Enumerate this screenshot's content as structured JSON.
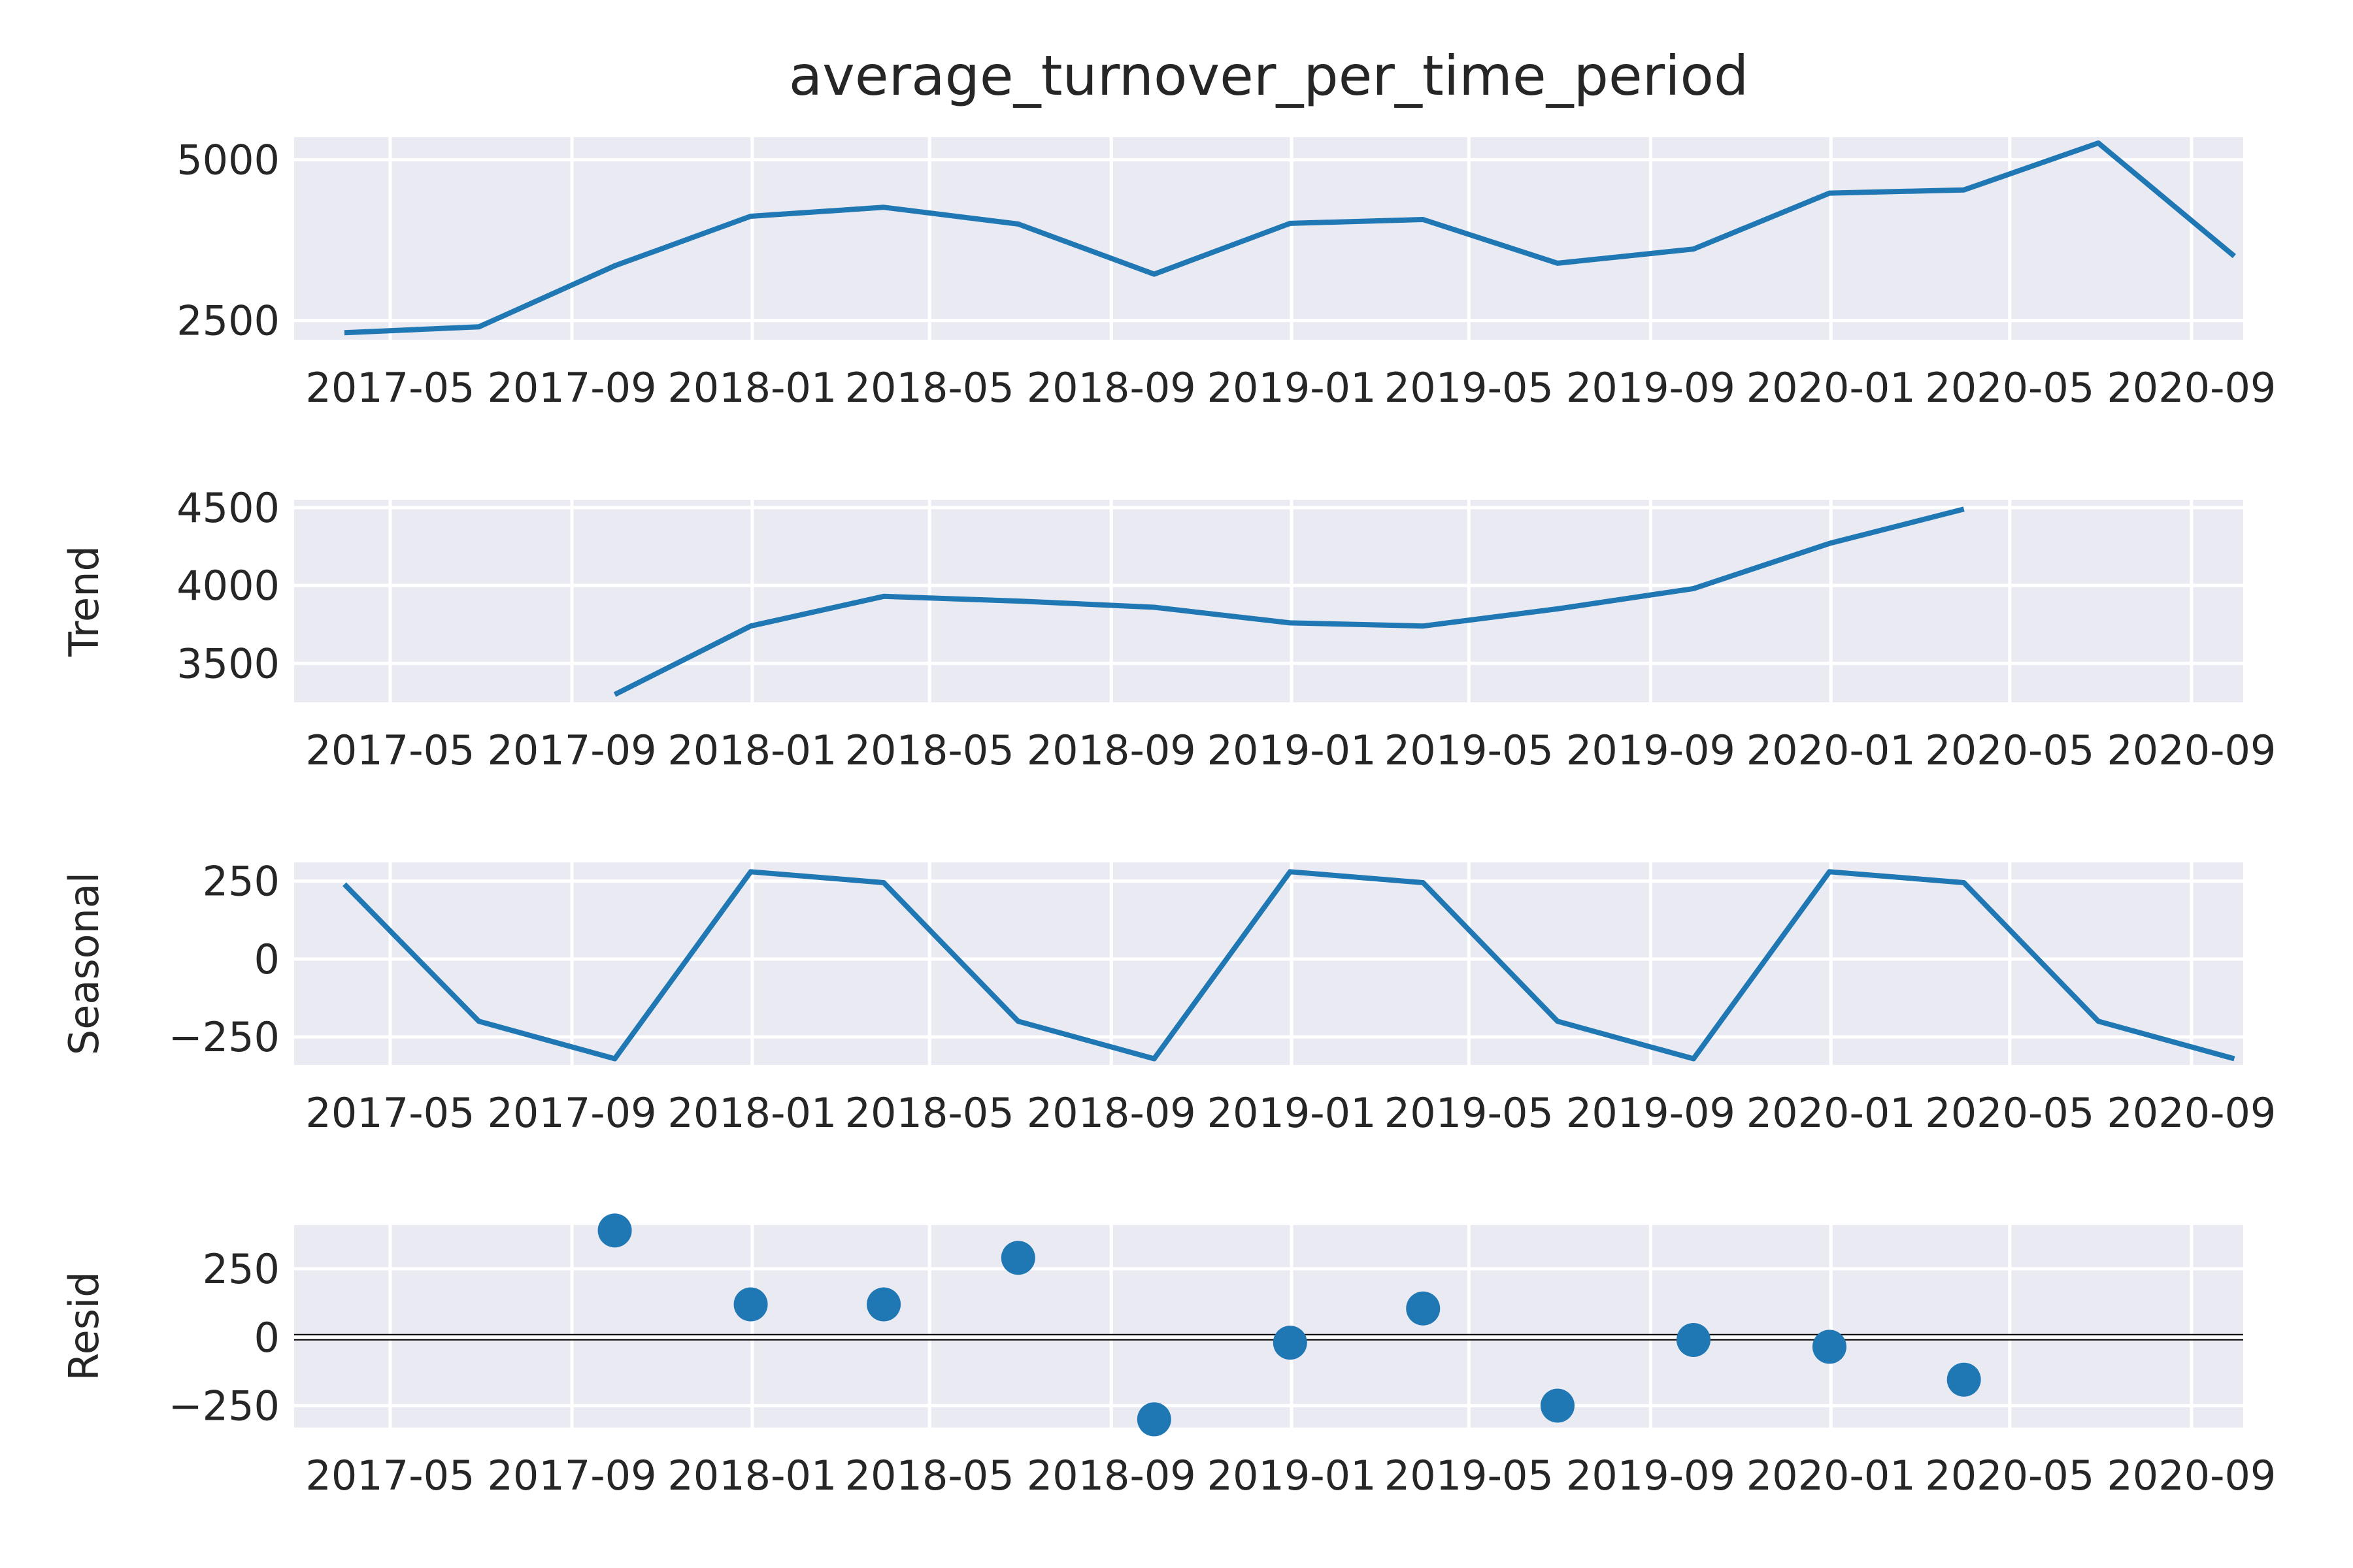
{
  "chart_data": [
    {
      "type": "line",
      "title": "average_turnover_per_time_period",
      "ylabel": "",
      "x": [
        "2017-03-31",
        "2017-06-30",
        "2017-09-30",
        "2017-12-31",
        "2018-03-31",
        "2018-06-30",
        "2018-09-30",
        "2018-12-31",
        "2019-03-31",
        "2019-06-30",
        "2019-09-30",
        "2019-12-31",
        "2020-03-31",
        "2020-06-30",
        "2020-09-30"
      ],
      "values": [
        2310,
        2400,
        3350,
        4120,
        4260,
        4000,
        3220,
        4010,
        4070,
        3390,
        3610,
        4480,
        4530,
        5260,
        3500
      ],
      "ylim": [
        2200,
        5350
      ],
      "yticks": [
        2500,
        5000
      ],
      "ytick_labels": [
        "2500",
        "5000"
      ]
    },
    {
      "type": "line",
      "title": "",
      "ylabel": "Trend",
      "x": [
        "2017-09-30",
        "2017-12-31",
        "2018-03-31",
        "2018-06-30",
        "2018-09-30",
        "2018-12-31",
        "2019-03-31",
        "2019-06-30",
        "2019-09-30",
        "2019-12-31",
        "2020-03-31"
      ],
      "values": [
        3300,
        3740,
        3930,
        3900,
        3860,
        3760,
        3740,
        3850,
        3980,
        4270,
        4490
      ],
      "ylim": [
        3250,
        4550
      ],
      "yticks": [
        3500,
        4000,
        4500
      ],
      "ytick_labels": [
        "3500",
        "4000",
        "4500"
      ]
    },
    {
      "type": "line",
      "title": "",
      "ylabel": "Seasonal",
      "x": [
        "2017-03-31",
        "2017-06-30",
        "2017-09-30",
        "2017-12-31",
        "2018-03-31",
        "2018-06-30",
        "2018-09-30",
        "2018-12-31",
        "2019-03-31",
        "2019-06-30",
        "2019-09-30",
        "2019-12-31",
        "2020-03-31",
        "2020-06-30",
        "2020-09-30"
      ],
      "values": [
        240,
        -200,
        -320,
        280,
        245,
        -200,
        -320,
        280,
        245,
        -200,
        -320,
        280,
        245,
        -200,
        -320
      ],
      "ylim": [
        -340,
        310
      ],
      "yticks": [
        -250,
        0,
        250
      ],
      "ytick_labels": [
        "−250",
        "0",
        "250"
      ]
    },
    {
      "type": "scatter",
      "title": "",
      "ylabel": "Resid",
      "x": [
        "2017-09-30",
        "2017-12-31",
        "2018-03-31",
        "2018-06-30",
        "2018-09-30",
        "2018-12-31",
        "2019-03-31",
        "2019-06-30",
        "2019-09-30",
        "2019-12-31",
        "2020-03-31"
      ],
      "values": [
        390,
        120,
        120,
        290,
        -300,
        -20,
        105,
        -250,
        -10,
        -35,
        -155
      ],
      "ylim": [
        -330,
        410
      ],
      "yticks": [
        -250,
        0,
        250
      ],
      "ytick_labels": [
        "−250",
        "0",
        "250"
      ],
      "zero_line": true
    }
  ],
  "x_axis": {
    "range": [
      "2017-02-25",
      "2020-10-06"
    ],
    "ticks": [
      "2017-05-01",
      "2017-09-01",
      "2018-01-01",
      "2018-05-01",
      "2018-09-01",
      "2019-01-01",
      "2019-05-01",
      "2019-09-01",
      "2020-01-01",
      "2020-05-01",
      "2020-09-01"
    ],
    "tick_labels": [
      "2017-05",
      "2017-09",
      "2018-01",
      "2018-05",
      "2018-09",
      "2019-01",
      "2019-05",
      "2019-09",
      "2020-01",
      "2020-05",
      "2020-09"
    ]
  },
  "colors": {
    "line": "#1f77b4",
    "background": "#eaeaf2",
    "grid": "#ffffff"
  },
  "grid": true
}
